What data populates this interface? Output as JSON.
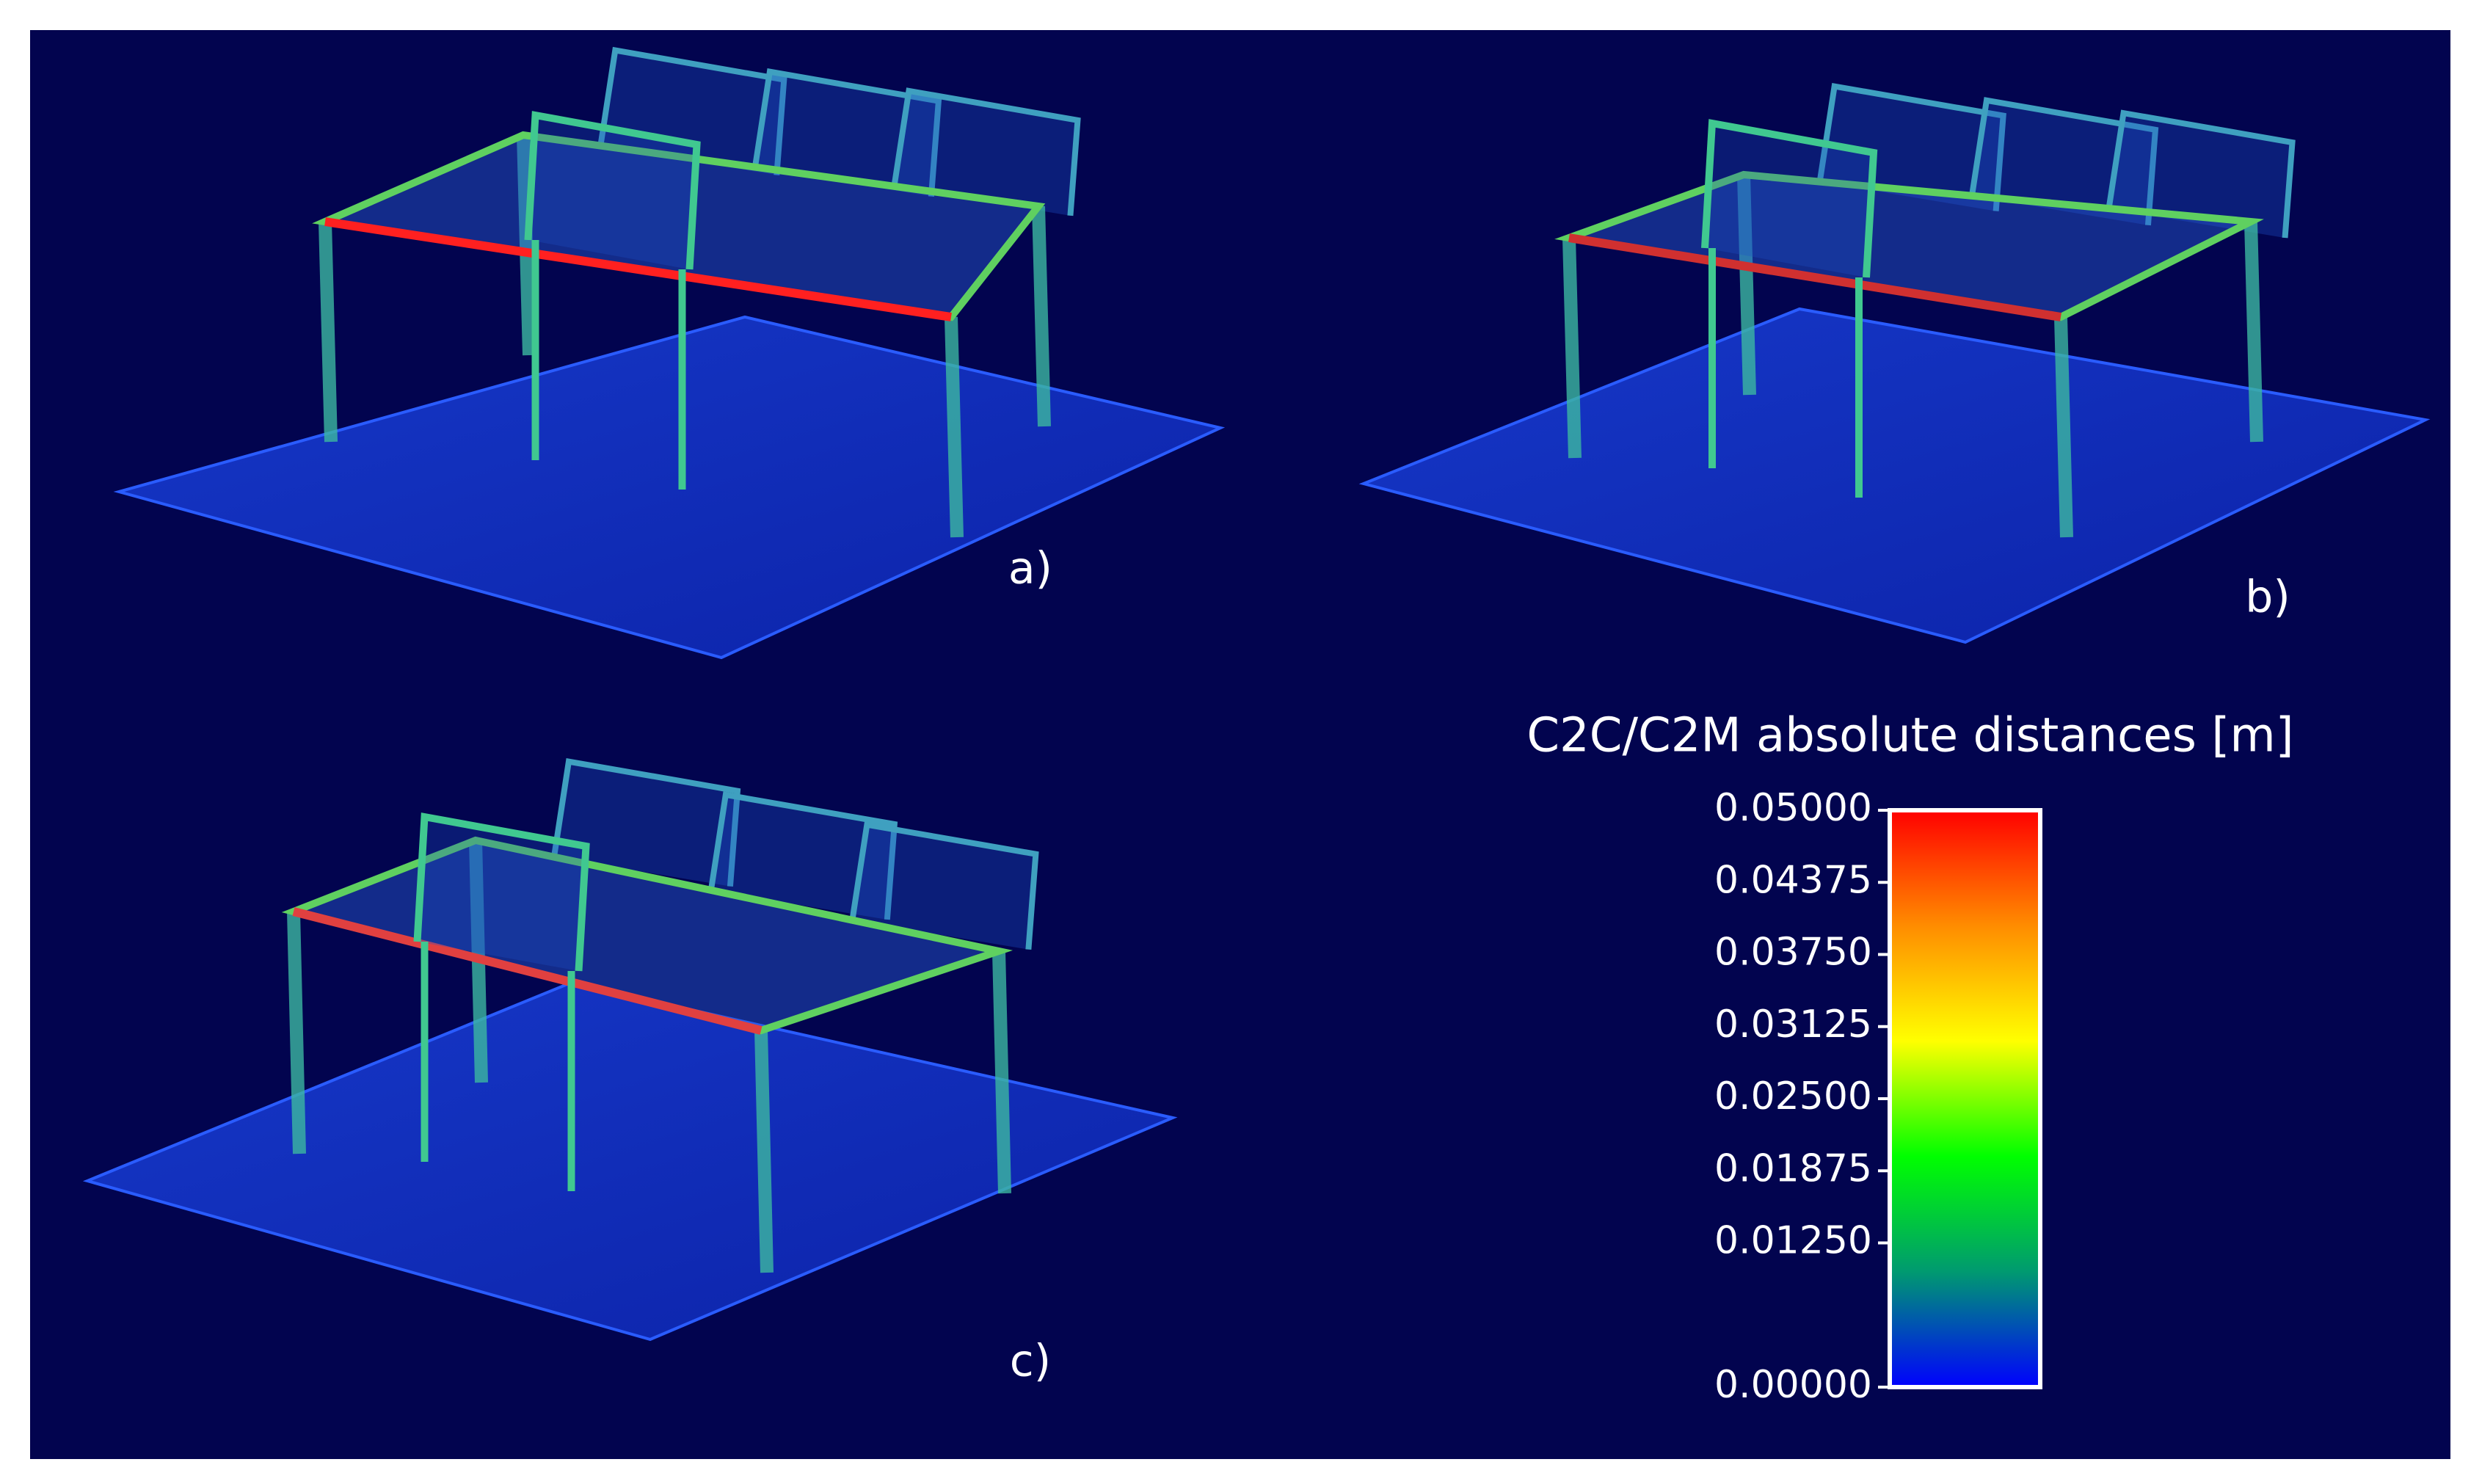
{
  "panels": [
    {
      "label": "a)"
    },
    {
      "label": "b)"
    },
    {
      "label": "c)"
    }
  ],
  "colorbar": {
    "title": "C2C/C2M absolute distances [m]",
    "range": [
      0,
      0.05
    ],
    "ticks": [
      {
        "value": 0,
        "label": "0.00000"
      },
      {
        "value": 0.0125,
        "label": "0.01250"
      },
      {
        "value": 0.01875,
        "label": "0.01875"
      },
      {
        "value": 0.025,
        "label": "0.02500"
      },
      {
        "value": 0.03125,
        "label": "0.03125"
      },
      {
        "value": 0.0375,
        "label": "0.03750"
      },
      {
        "value": 0.04375,
        "label": "0.04375"
      },
      {
        "value": 0.05,
        "label": "0.05000"
      }
    ],
    "colors": [
      "#ff0000",
      "#ff8c00",
      "#ffff00",
      "#00ff00",
      "#009a70",
      "#0000ff"
    ]
  }
}
